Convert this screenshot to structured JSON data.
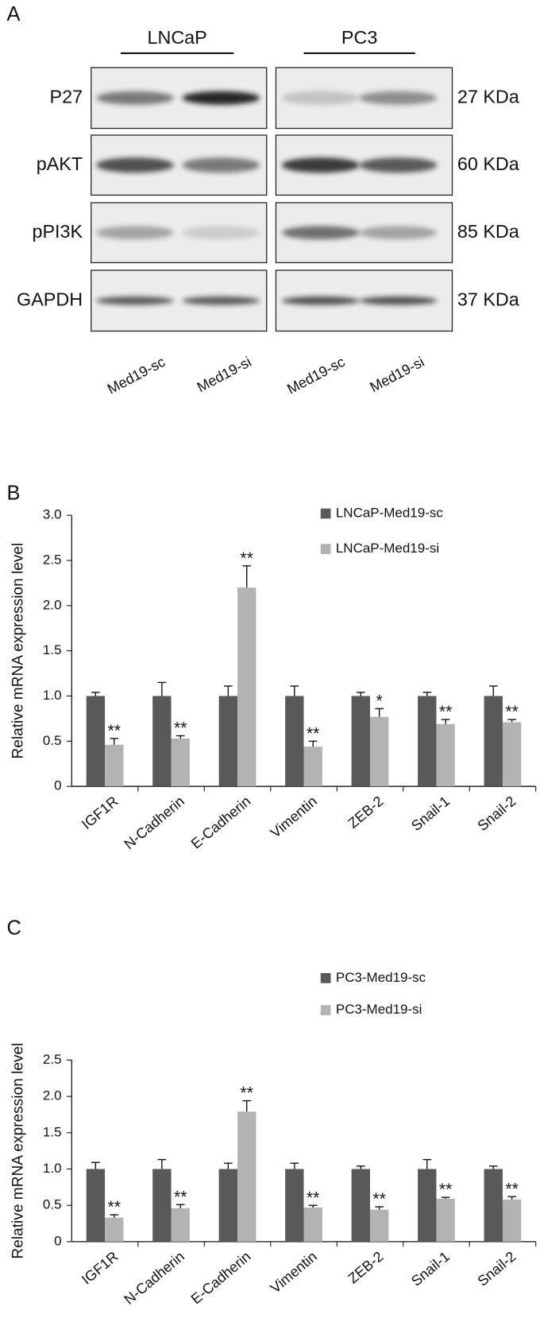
{
  "blot": {
    "panel": "A",
    "cell_lines": [
      "LNCaP",
      "PC3"
    ],
    "rows": [
      {
        "protein": "P27",
        "size": "27 KDa"
      },
      {
        "protein": "pAKT",
        "size": "60 KDa"
      },
      {
        "protein": "pPI3K",
        "size": "85 KDa"
      },
      {
        "protein": "GAPDH",
        "size": "37 KDa"
      }
    ],
    "lanes": [
      "Med19-sc",
      "Med19-si",
      "Med19-sc",
      "Med19-si"
    ]
  },
  "chart_data": [
    {
      "type": "bar",
      "panel": "B",
      "ylabel": "Relative mRNA expression level",
      "categories": [
        "IGF1R",
        "N-Cadherin",
        "E-Cadherin",
        "Vimentin",
        "ZEB-2",
        "Snail-1",
        "Snail-2"
      ],
      "series": [
        {
          "name": "LNCaP-Med19-sc",
          "color": "#595959",
          "values": [
            1,
            1,
            1,
            1,
            1,
            1,
            1
          ],
          "errors": [
            0.04,
            0.15,
            0.11,
            0.11,
            0.04,
            0.04,
            0.11
          ]
        },
        {
          "name": "LNCaP-Med19-si",
          "color": "#b3b3b3",
          "values": [
            0.46,
            0.53,
            2.2,
            0.44,
            0.77,
            0.69,
            0.71
          ],
          "errors": [
            0.07,
            0.03,
            0.24,
            0.06,
            0.09,
            0.05,
            0.03
          ],
          "annotations": [
            "**",
            "**",
            "**",
            "**",
            "*",
            "**",
            "**"
          ]
        }
      ],
      "ylim": [
        0,
        3
      ],
      "yticks": [
        0,
        0.5,
        {
          "value": 1,
          "label": "1.0"
        },
        1.5,
        {
          "value": 2,
          "label": "2.0"
        },
        2.5,
        {
          "value": 3,
          "label": "3.0"
        }
      ],
      "grid": false
    },
    {
      "type": "bar",
      "panel": "C",
      "ylabel": "Relative mRNA expression level",
      "categories": [
        "IGF1R",
        "N-Cadherin",
        "E-Cadherin",
        "Vimentin",
        "ZEB-2",
        "Snail-1",
        "Snail-2"
      ],
      "series": [
        {
          "name": "PC3-Med19-sc",
          "color": "#595959",
          "values": [
            1,
            1,
            1,
            1,
            1,
            1,
            1
          ],
          "errors": [
            0.09,
            0.13,
            0.08,
            0.08,
            0.04,
            0.13,
            0.04
          ]
        },
        {
          "name": "PC3-Med19-si",
          "color": "#b3b3b3",
          "values": [
            0.33,
            0.46,
            1.79,
            0.47,
            0.44,
            0.59,
            0.58
          ],
          "errors": [
            0.04,
            0.05,
            0.15,
            0.03,
            0.04,
            0.02,
            0.04
          ],
          "annotations": [
            "**",
            "**",
            "**",
            "**",
            "**",
            "**",
            "**"
          ]
        }
      ],
      "ylim": [
        0,
        2.5
      ],
      "yticks": [
        0,
        0.5,
        {
          "value": 1,
          "label": "1.0"
        },
        1.5,
        {
          "value": 2,
          "label": "2.0"
        },
        2.5
      ],
      "grid": false
    }
  ]
}
